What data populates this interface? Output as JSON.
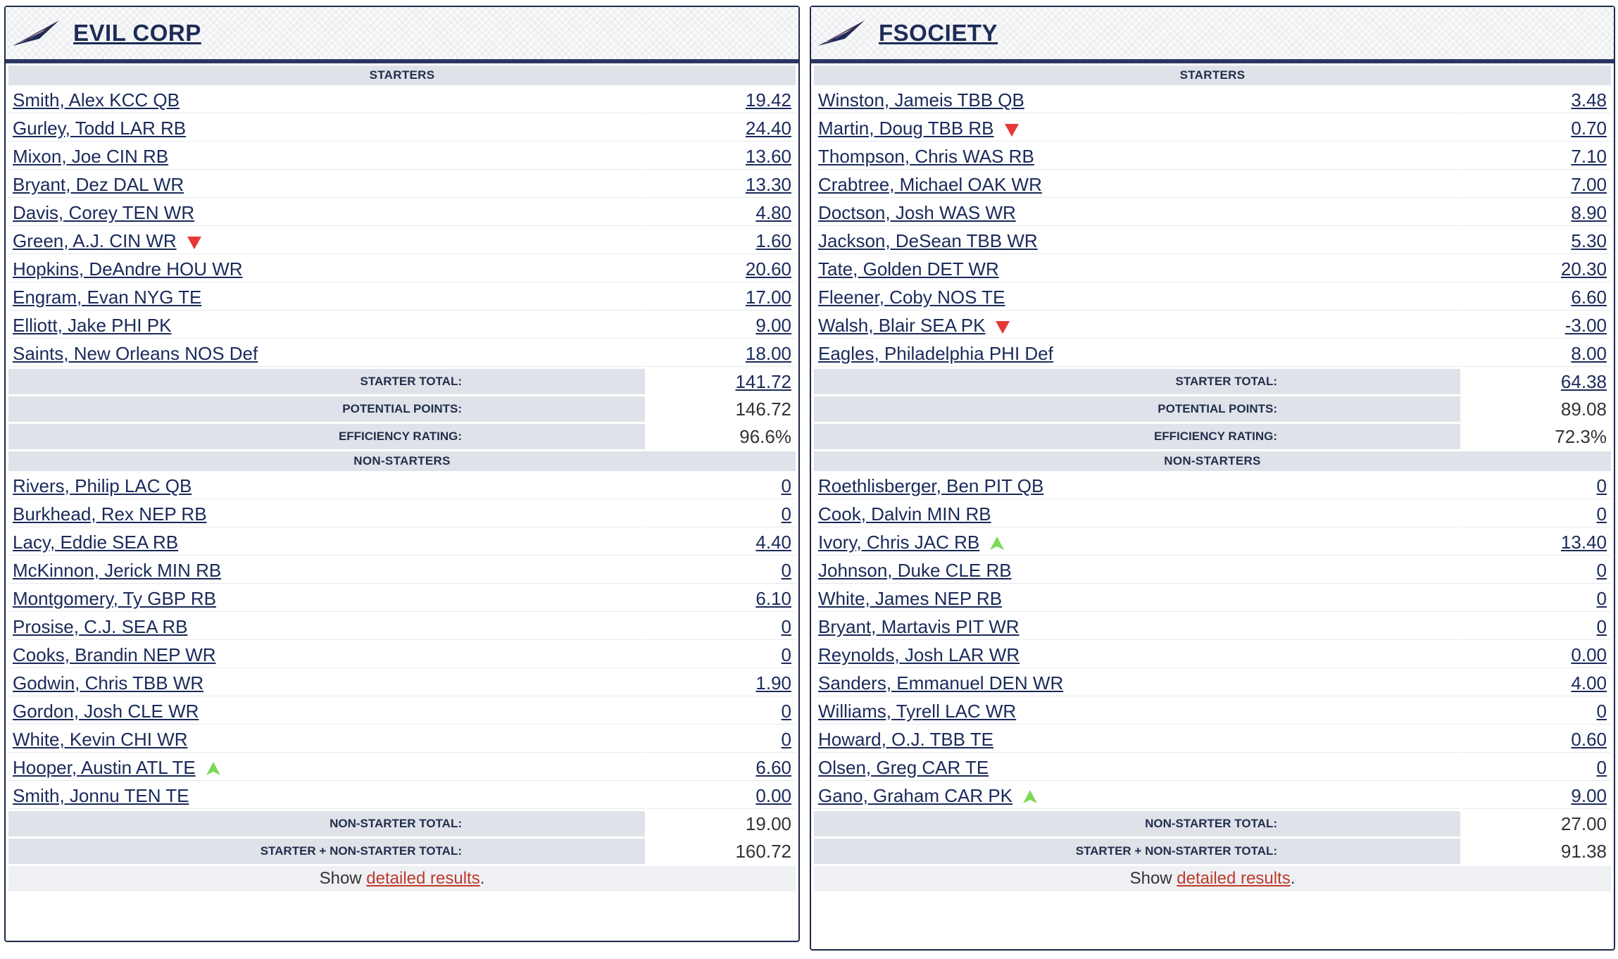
{
  "teams": [
    {
      "name": "EVIL CORP",
      "sections": {
        "starters_label": "STARTERS",
        "non_starters_label": "NON-STARTERS"
      },
      "starters": [
        {
          "player": "Smith, Alex KCC QB",
          "points": "19.42",
          "trend": ""
        },
        {
          "player": "Gurley, Todd LAR RB",
          "points": "24.40",
          "trend": ""
        },
        {
          "player": "Mixon, Joe CIN RB",
          "points": "13.60",
          "trend": ""
        },
        {
          "player": "Bryant, Dez DAL WR",
          "points": "13.30",
          "trend": ""
        },
        {
          "player": "Davis, Corey TEN WR",
          "points": "4.80",
          "trend": ""
        },
        {
          "player": "Green, A.J. CIN WR",
          "points": "1.60",
          "trend": "down"
        },
        {
          "player": "Hopkins, DeAndre HOU WR",
          "points": "20.60",
          "trend": ""
        },
        {
          "player": "Engram, Evan NYG TE",
          "points": "17.00",
          "trend": ""
        },
        {
          "player": "Elliott, Jake PHI PK",
          "points": "9.00",
          "trend": ""
        },
        {
          "player": "Saints, New Orleans NOS Def",
          "points": "18.00",
          "trend": ""
        }
      ],
      "starter_summary": [
        {
          "label": "STARTER TOTAL:",
          "value": "141.72",
          "link": true
        },
        {
          "label": "POTENTIAL POINTS:",
          "value": "146.72",
          "link": false
        },
        {
          "label": "EFFICIENCY RATING:",
          "value": "96.6%",
          "link": false
        }
      ],
      "non_starters": [
        {
          "player": "Rivers, Philip LAC QB",
          "points": "0",
          "trend": ""
        },
        {
          "player": "Burkhead, Rex NEP RB",
          "points": "0",
          "trend": ""
        },
        {
          "player": "Lacy, Eddie SEA RB",
          "points": "4.40",
          "trend": ""
        },
        {
          "player": "McKinnon, Jerick MIN RB",
          "points": "0",
          "trend": ""
        },
        {
          "player": "Montgomery, Ty GBP RB",
          "points": "6.10",
          "trend": ""
        },
        {
          "player": "Prosise, C.J. SEA RB",
          "points": "0",
          "trend": ""
        },
        {
          "player": "Cooks, Brandin NEP WR",
          "points": "0",
          "trend": ""
        },
        {
          "player": "Godwin, Chris TBB WR",
          "points": "1.90",
          "trend": ""
        },
        {
          "player": "Gordon, Josh CLE WR",
          "points": "0",
          "trend": ""
        },
        {
          "player": "White, Kevin CHI WR",
          "points": "0",
          "trend": ""
        },
        {
          "player": "Hooper, Austin ATL TE",
          "points": "6.60",
          "trend": "up"
        },
        {
          "player": "Smith, Jonnu TEN TE",
          "points": "0.00",
          "trend": ""
        }
      ],
      "non_starter_summary": [
        {
          "label": "NON-STARTER TOTAL:",
          "value": "19.00"
        },
        {
          "label": "STARTER + NON-STARTER TOTAL:",
          "value": "160.72"
        }
      ],
      "footer": {
        "prefix": "Show ",
        "link": "detailed results",
        "suffix": "."
      }
    },
    {
      "name": "FSOCIETY",
      "sections": {
        "starters_label": "STARTERS",
        "non_starters_label": "NON-STARTERS"
      },
      "starters": [
        {
          "player": "Winston, Jameis TBB QB",
          "points": "3.48",
          "trend": ""
        },
        {
          "player": "Martin, Doug TBB RB",
          "points": "0.70",
          "trend": "down"
        },
        {
          "player": "Thompson, Chris WAS RB",
          "points": "7.10",
          "trend": ""
        },
        {
          "player": "Crabtree, Michael OAK WR",
          "points": "7.00",
          "trend": ""
        },
        {
          "player": "Doctson, Josh WAS WR",
          "points": "8.90",
          "trend": ""
        },
        {
          "player": "Jackson, DeSean TBB WR",
          "points": "5.30",
          "trend": ""
        },
        {
          "player": "Tate, Golden DET WR",
          "points": "20.30",
          "trend": ""
        },
        {
          "player": "Fleener, Coby NOS TE",
          "points": "6.60",
          "trend": ""
        },
        {
          "player": "Walsh, Blair SEA PK",
          "points": "-3.00",
          "trend": "down"
        },
        {
          "player": "Eagles, Philadelphia PHI Def",
          "points": "8.00",
          "trend": ""
        }
      ],
      "starter_summary": [
        {
          "label": "STARTER TOTAL:",
          "value": "64.38",
          "link": true
        },
        {
          "label": "POTENTIAL POINTS:",
          "value": "89.08",
          "link": false
        },
        {
          "label": "EFFICIENCY RATING:",
          "value": "72.3%",
          "link": false
        }
      ],
      "non_starters": [
        {
          "player": "Roethlisberger, Ben PIT QB",
          "points": "0",
          "trend": ""
        },
        {
          "player": "Cook, Dalvin MIN RB",
          "points": "0",
          "trend": ""
        },
        {
          "player": "Ivory, Chris JAC RB",
          "points": "13.40",
          "trend": "up"
        },
        {
          "player": "Johnson, Duke CLE RB",
          "points": "0",
          "trend": ""
        },
        {
          "player": "White, James NEP RB",
          "points": "0",
          "trend": ""
        },
        {
          "player": "Bryant, Martavis PIT WR",
          "points": "0",
          "trend": ""
        },
        {
          "player": "Reynolds, Josh LAR WR",
          "points": "0.00",
          "trend": ""
        },
        {
          "player": "Sanders, Emmanuel DEN WR",
          "points": "4.00",
          "trend": ""
        },
        {
          "player": "Williams, Tyrell LAC WR",
          "points": "0",
          "trend": ""
        },
        {
          "player": "Howard, O.J. TBB TE",
          "points": "0.60",
          "trend": ""
        },
        {
          "player": "Olsen, Greg CAR TE",
          "points": "0",
          "trend": ""
        },
        {
          "player": "Gano, Graham CAR PK",
          "points": "9.00",
          "trend": "up"
        }
      ],
      "non_starter_summary": [
        {
          "label": "NON-STARTER TOTAL:",
          "value": "27.00"
        },
        {
          "label": "STARTER + NON-STARTER TOTAL:",
          "value": "91.38"
        }
      ],
      "footer": {
        "prefix": "Show ",
        "link": "detailed results",
        "suffix": "."
      }
    }
  ],
  "colors": {
    "navy": "#1e2b56",
    "section_bg": "#dfe3e9",
    "arrow_down": "#e53935",
    "arrow_up": "#7ed957",
    "link_red": "#c0392b"
  }
}
